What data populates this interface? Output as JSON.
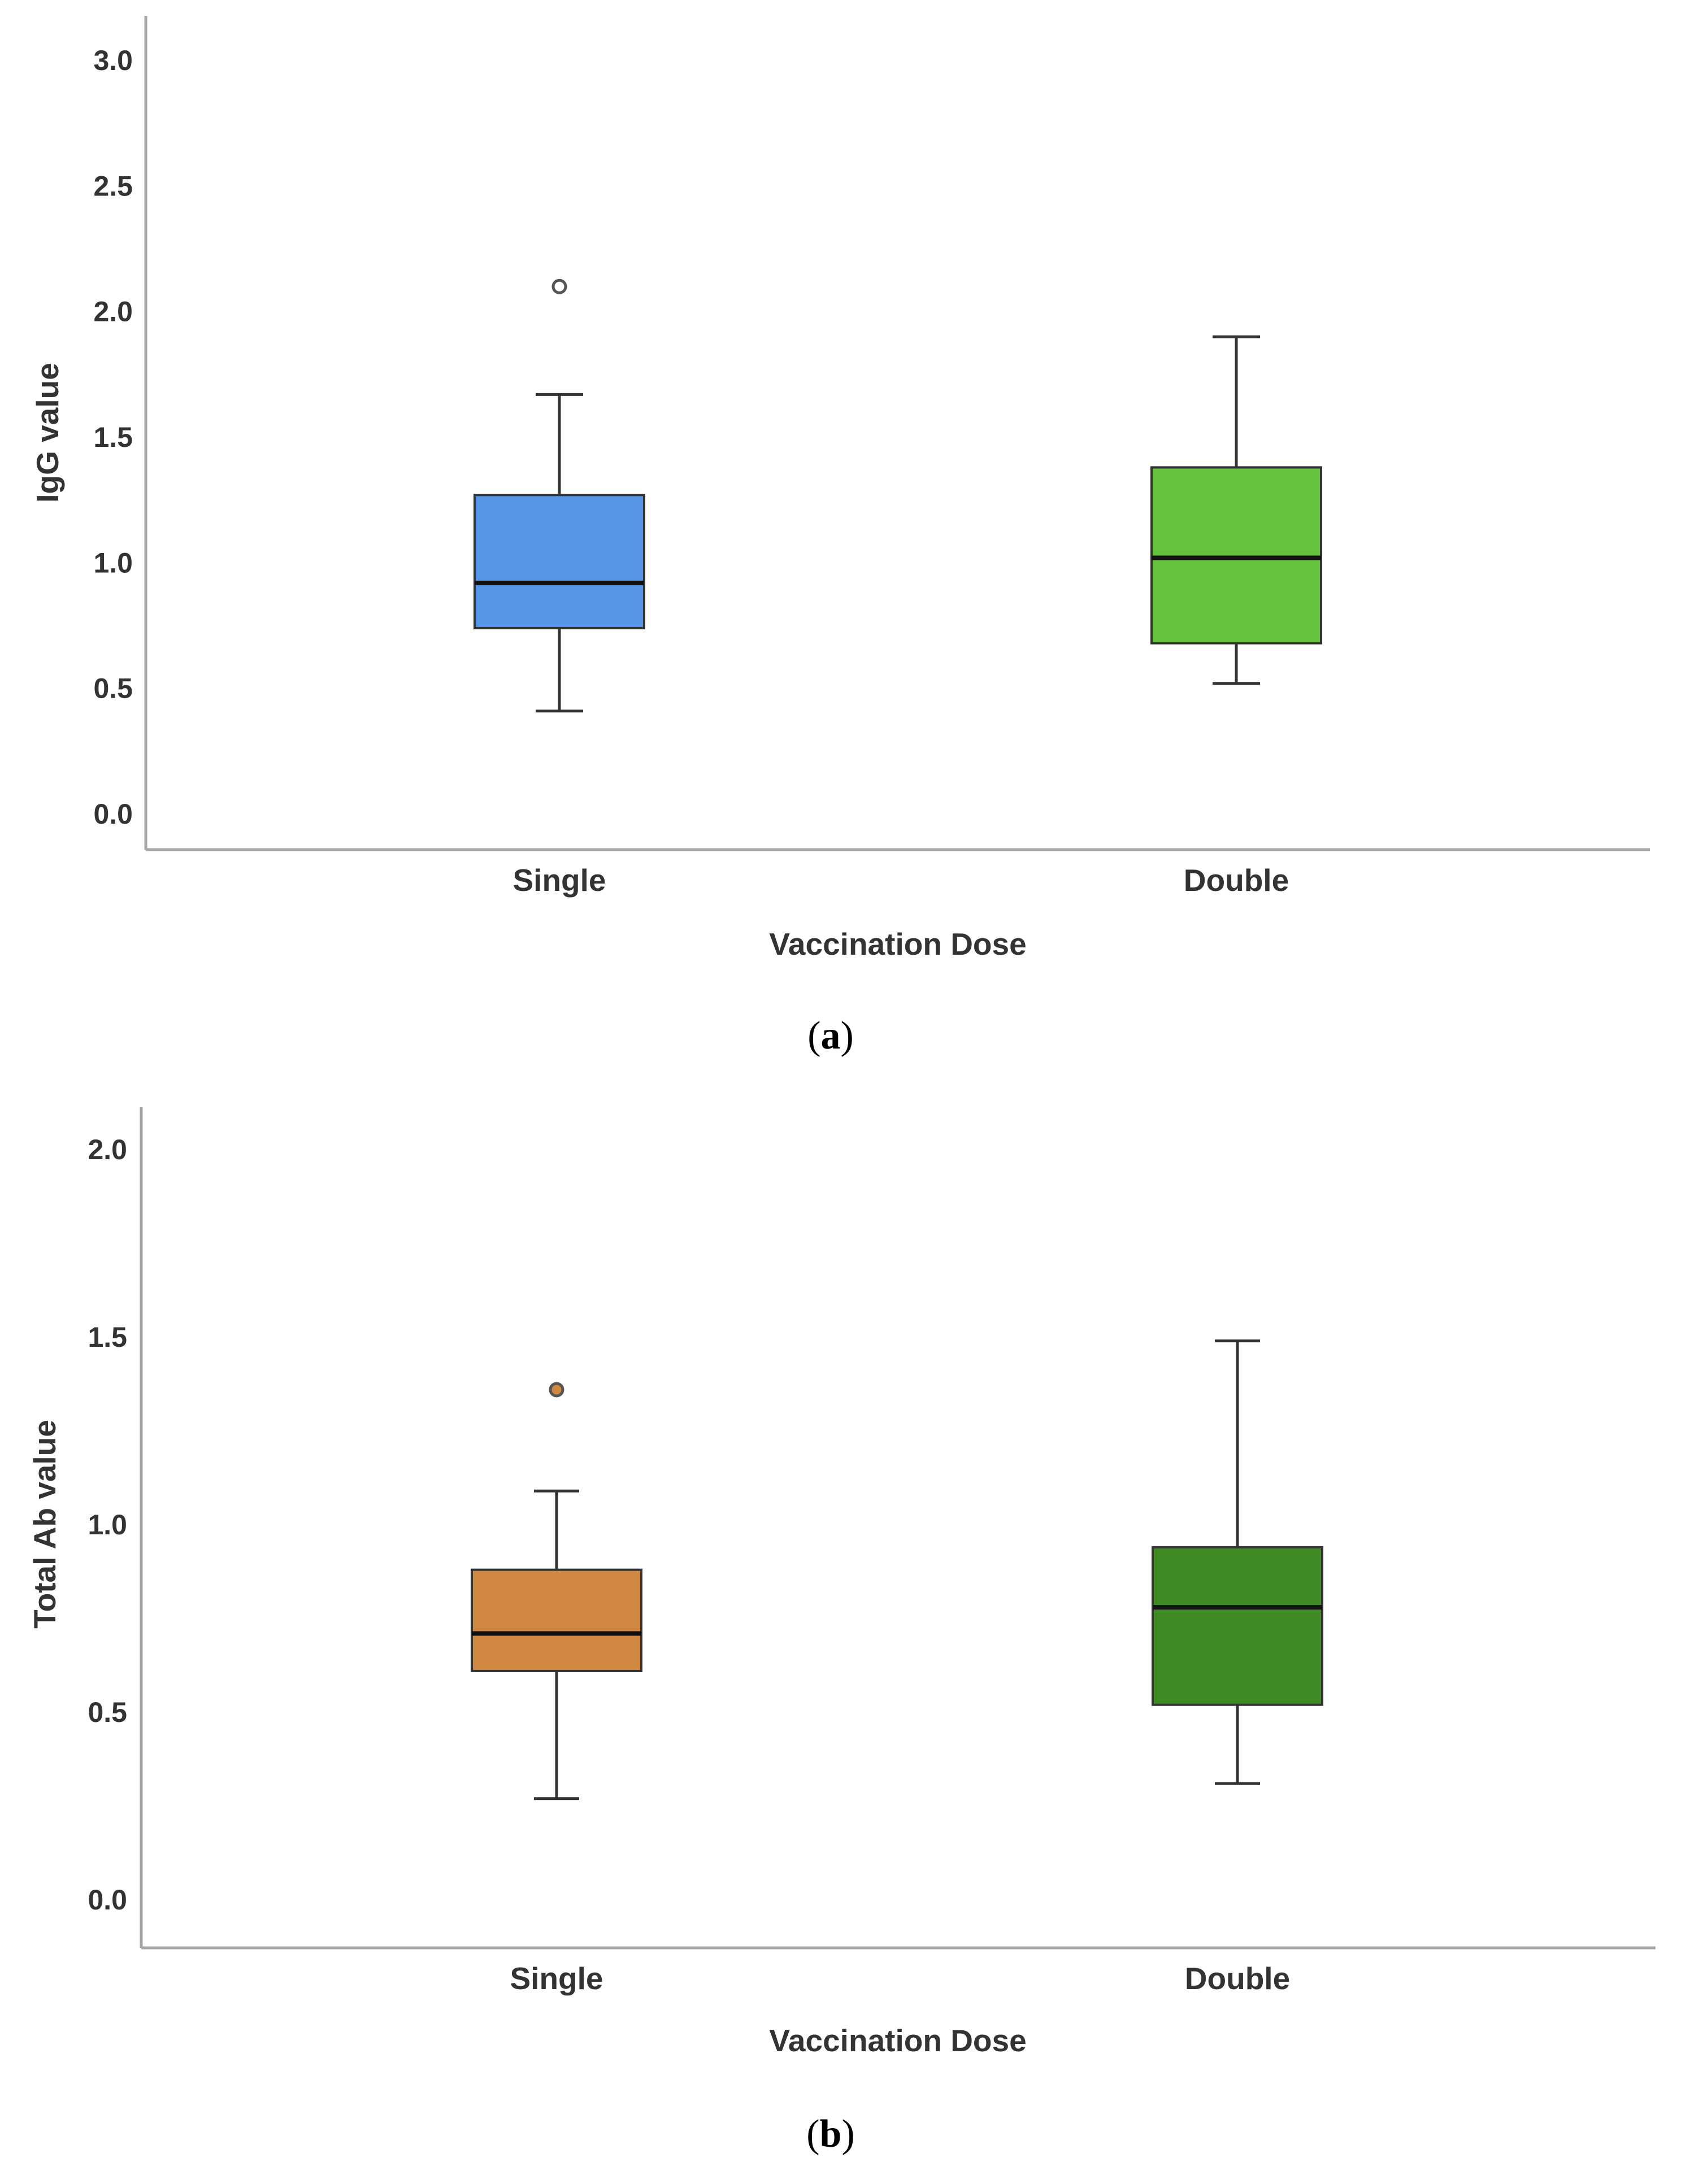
{
  "chart_data": [
    {
      "type": "boxplot",
      "panel_label": "a",
      "title": "",
      "xlabel": "Vaccination Dose",
      "ylabel": "IgG value",
      "ylim": [
        -0.1,
        3.1
      ],
      "yticks": [
        0.0,
        0.5,
        1.0,
        1.5,
        2.0,
        2.5,
        3.0
      ],
      "ytick_labels": [
        "0.0",
        "0.5",
        "1.0",
        "1.5",
        "2.0",
        "2.5",
        "3.0"
      ],
      "categories": [
        "Single",
        "Double"
      ],
      "boxes": [
        {
          "name": "Single",
          "whisker_low": 0.41,
          "q1": 0.74,
          "median": 0.92,
          "q3": 1.27,
          "whisker_high": 1.67,
          "outliers": [
            2.1
          ],
          "color": "#5596e6",
          "outlier_fill": "#ffffff"
        },
        {
          "name": "Double",
          "whisker_low": 0.52,
          "q1": 0.68,
          "median": 1.02,
          "q3": 1.38,
          "whisker_high": 1.9,
          "outliers": [],
          "color": "#64c33a",
          "outlier_fill": "#ffffff"
        }
      ]
    },
    {
      "type": "boxplot",
      "panel_label": "b",
      "title": "",
      "xlabel": "Vaccination Dose",
      "ylabel": "Total Ab value",
      "ylim": [
        -0.1,
        2.1
      ],
      "yticks": [
        0.0,
        0.5,
        1.0,
        1.5,
        2.0
      ],
      "ytick_labels": [
        "0.0",
        "0.5",
        "1.0",
        "1.5",
        "2.0"
      ],
      "categories": [
        "Single",
        "Double"
      ],
      "boxes": [
        {
          "name": "Single",
          "whisker_low": 0.27,
          "q1": 0.61,
          "median": 0.71,
          "q3": 0.88,
          "whisker_high": 1.09,
          "outliers": [
            1.36
          ],
          "color": "#d08741",
          "outlier_fill": "#d08741"
        },
        {
          "name": "Double",
          "whisker_low": 0.31,
          "q1": 0.52,
          "median": 0.78,
          "q3": 0.94,
          "whisker_high": 1.49,
          "outliers": [],
          "color": "#3f8a22",
          "outlier_fill": "#3f8a22"
        }
      ]
    }
  ]
}
